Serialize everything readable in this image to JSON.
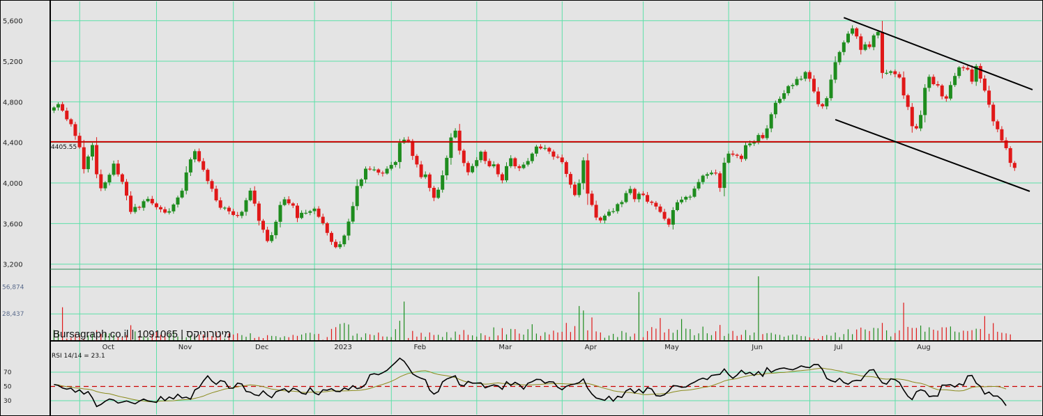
{
  "chart_data": {
    "type": "candlestick",
    "watermark": "Bursagraph.co.il | 1091065 | מיטרוניקס",
    "colors": {
      "up": "#1e8c1e",
      "down": "#e01818",
      "grid": "#5de0a8",
      "support": "#cc0000",
      "rsi": "#000000",
      "rsi_ma": "#8a8a1a",
      "rsi_mid": "#cc0000"
    },
    "price_axis": {
      "ticks": [
        3200,
        3600,
        4000,
        4400,
        4800,
        5200,
        5600
      ],
      "tick_labels": [
        "3,200",
        "3,600",
        "4,000",
        "4,400",
        "4,800",
        "5,200",
        "5,600"
      ],
      "ylim": [
        3150,
        5790
      ]
    },
    "support_line": {
      "value": 4405.55,
      "label": "4405.55"
    },
    "months": [
      "Oct",
      "Nov",
      "Dec",
      "2023",
      "Feb",
      "Mar",
      "Apr",
      "May",
      "Jun",
      "Jul",
      "Aug"
    ],
    "month_index": [
      7,
      25,
      43,
      62,
      80,
      100,
      120,
      139,
      159,
      178,
      198
    ],
    "closes": [
      4744,
      4777,
      4713,
      4628,
      4580,
      4465,
      4352,
      4137,
      4261,
      4374,
      4086,
      3948,
      4006,
      4081,
      4191,
      4085,
      4011,
      3875,
      3715,
      3764,
      3756,
      3820,
      3843,
      3799,
      3762,
      3741,
      3708,
      3721,
      3788,
      3857,
      3924,
      4104,
      4233,
      4314,
      4215,
      4130,
      4019,
      3943,
      3829,
      3756,
      3757,
      3721,
      3685,
      3676,
      3716,
      3830,
      3925,
      3797,
      3627,
      3539,
      3428,
      3486,
      3618,
      3783,
      3839,
      3799,
      3777,
      3655,
      3706,
      3706,
      3722,
      3747,
      3667,
      3603,
      3508,
      3420,
      3367,
      3396,
      3482,
      3620,
      3772,
      3970,
      4035,
      4141,
      4133,
      4133,
      4102,
      4094,
      4141,
      4178,
      4207,
      4396,
      4427,
      4414,
      4267,
      4183,
      4058,
      4084,
      3952,
      3854,
      3934,
      4076,
      4248,
      4449,
      4516,
      4319,
      4197,
      4106,
      4167,
      4225,
      4308,
      4217,
      4165,
      4184,
      4086,
      4026,
      4166,
      4244,
      4165,
      4147,
      4181,
      4216,
      4290,
      4359,
      4341,
      4345,
      4310,
      4259,
      4251,
      4205,
      4089,
      3984,
      3881,
      3997,
      4223,
      3895,
      3784,
      3659,
      3631,
      3678,
      3717,
      3722,
      3792,
      3812,
      3900,
      3941,
      3840,
      3895,
      3881,
      3816,
      3805,
      3768,
      3715,
      3647,
      3590,
      3733,
      3810,
      3836,
      3863,
      3865,
      3945,
      4009,
      4072,
      4087,
      4102,
      4095,
      3952,
      4200,
      4290,
      4279,
      4269,
      4237,
      4372,
      4389,
      4411,
      4473,
      4443,
      4538,
      4677,
      4790,
      4829,
      4885,
      4955,
      4966,
      5025,
      5027,
      5093,
      5027,
      4902,
      4777,
      4756,
      4836,
      5019,
      5191,
      5291,
      5386,
      5472,
      5524,
      5445,
      5312,
      5366,
      5340,
      5455,
      5489,
      5085,
      5086,
      5101,
      5073,
      5040,
      4864,
      4750,
      4560,
      4538,
      4670,
      4938,
      5047,
      4974,
      4961,
      4854,
      4832,
      4965,
      5055,
      5140,
      5134,
      5119,
      4999,
      5153,
      5029,
      4911,
      4772,
      4608,
      4530,
      4420,
      4343,
      4198,
      4149
    ],
    "volume_axis": {
      "ticks": [
        28437,
        56874
      ],
      "tick_labels": [
        "28,437",
        "56,874"
      ]
    },
    "volumes": [
      11500,
      10600,
      35400,
      2500,
      3300,
      7500,
      6000,
      2200,
      5600,
      7800,
      11200,
      7300,
      8000,
      8000,
      6500,
      4100,
      3800,
      6000,
      16500,
      10000,
      5100,
      4600,
      3700,
      6600,
      9700,
      6400,
      7800,
      7300,
      10200,
      4700,
      4800,
      3800,
      5800,
      4900,
      6600,
      6600,
      10000,
      5100,
      9200,
      7700,
      2600,
      7800,
      6700,
      8000,
      6100,
      4300,
      8000,
      3000,
      4200,
      2900,
      6000,
      5300,
      5000,
      3600,
      4900,
      3900,
      6300,
      5300,
      6700,
      8100,
      8600,
      7100,
      7400,
      1100,
      4000,
      12600,
      14400,
      17900,
      18800,
      17300,
      5500,
      7700,
      3800,
      7900,
      6800,
      6000,
      8700,
      4700,
      4500,
      4000,
      12300,
      21200,
      41400,
      3000,
      10500,
      4500,
      8500,
      4300,
      8900,
      6200,
      6400,
      4100,
      9200,
      3400,
      9800,
      6600,
      11400,
      6400,
      5800,
      4500,
      8000,
      5900,
      4300,
      14200,
      5700,
      13400,
      6800,
      12600,
      12400,
      7700,
      6600,
      12300,
      17500,
      7700,
      5300,
      9100,
      6800,
      10800,
      8900,
      9600,
      18900,
      9400,
      15600,
      36700,
      32000,
      11100,
      24700,
      10000,
      8900,
      3300,
      5600,
      7400,
      4000,
      10400,
      8700,
      4600,
      7700,
      51400,
      3900,
      10300,
      14500,
      12900,
      24000,
      8900,
      12500,
      8600,
      11600,
      23000,
      12900,
      12400,
      5900,
      7900,
      15000,
      8000,
      6000,
      10100,
      16800,
      5200,
      7600,
      10500,
      5300,
      6400,
      11400,
      5900,
      8800,
      68000,
      7100,
      8100,
      8400,
      6900,
      6300,
      4400,
      5600,
      6700,
      6700,
      5100,
      4800,
      3700,
      2400,
      2200,
      5100,
      6200,
      5400,
      8800,
      3900,
      7100,
      12200,
      7000,
      12000,
      14000,
      12000,
      10400,
      13700,
      13300,
      18900,
      11100,
      4700,
      8300,
      11100,
      40200,
      14700,
      13600,
      13600,
      16100,
      9700,
      14300,
      11800,
      10800,
      14300,
      14200,
      15200,
      9800,
      9000,
      10800,
      10400,
      11300,
      12800,
      12500,
      26100,
      7500,
      18700,
      9600,
      8600,
      7900,
      6800
    ],
    "rsi": {
      "label": "RSI 14/14 = 23.1",
      "ticks": [
        30,
        50,
        70
      ],
      "midline": 50,
      "values": [
        52.8,
        51.5,
        47.8,
        46.2,
        47.6,
        41.9,
        45.2,
        39.3,
        42.8,
        34.0,
        21.8,
        24.7,
        29.2,
        32.3,
        31.0,
        26.7,
        28.0,
        29.7,
        27.6,
        25.6,
        29.4,
        32.3,
        29.8,
        28.6,
        27.6,
        35.8,
        30.1,
        35.2,
        32.4,
        39.0,
        33.8,
        35.0,
        32.1,
        45.1,
        48.3,
        57.6,
        64.8,
        57.5,
        52.9,
        58.2,
        56.7,
        47.7,
        47.6,
        54.7,
        53.4,
        43.1,
        42.0,
        38.3,
        37.0,
        43.8,
        38.0,
        34.2,
        42.5,
        44.6,
        46.7,
        41.8,
        47.6,
        45.3,
        40.4,
        39.1,
        48.1,
        40.8,
        38.3,
        45.3,
        44.7,
        46.8,
        43.1,
        42.8,
        47.9,
        45.4,
        51.1,
        46.9,
        48.2,
        53.2,
        66.4,
        67.9,
        66.5,
        69.2,
        72.6,
        78.2,
        83.7,
        89.6,
        85.3,
        77.0,
        67.7,
        64.0,
        61.4,
        59.4,
        44.8,
        39.3,
        42.8,
        56.4,
        60.4,
        62.7,
        65.0,
        52.2,
        50.6,
        57.1,
        54.6,
        54.7,
        55.1,
        48.0,
        50.4,
        52.1,
        50.9,
        46.0,
        56.6,
        51.5,
        55.8,
        52.5,
        46.2,
        54.5,
        56.6,
        60.0,
        59.7,
        54.6,
        56.6,
        56.2,
        48.8,
        45.3,
        50.2,
        52.3,
        53.4,
        55.4,
        60.5,
        47.5,
        39.5,
        33.8,
        32.2,
        30.5,
        36.1,
        29.3,
        36.2,
        34.6,
        43.9,
        46.9,
        40.9,
        46.2,
        40.8,
        48.3,
        46.3,
        37.1,
        36.4,
        38.4,
        43.9,
        51.2,
        50.7,
        48.8,
        49.2,
        53.2,
        56.0,
        59.5,
        61.6,
        59.7,
        65.4,
        66.3,
        67.0,
        74.5,
        66.8,
        61.4,
        66.0,
        72.6,
        67.5,
        69.7,
        65.4,
        70.9,
        64.2,
        76.2,
        69.9,
        73.2,
        75.1,
        75.9,
        74.4,
        73.3,
        75.8,
        78.8,
        77.1,
        76.3,
        80.8,
        80.6,
        73.8,
        61.2,
        58.1,
        56.2,
        61.5,
        55.5,
        53.1,
        57.4,
        58.6,
        58.1,
        66.4,
        72.8,
        73.5,
        63.4,
        55.1,
        53.2,
        60.7,
        59.6,
        55.6,
        45.0,
        36.2,
        31.6,
        42.6,
        45.2,
        43.5,
        35.8,
        36.6,
        36.4,
        51.9,
        51.8,
        52.4,
        49.1,
        53.8,
        51.8,
        64.7,
        65.5,
        54.6,
        50.1,
        39.3,
        42.1,
        36.5,
        36.5,
        31.6,
        23.1
      ]
    }
  }
}
